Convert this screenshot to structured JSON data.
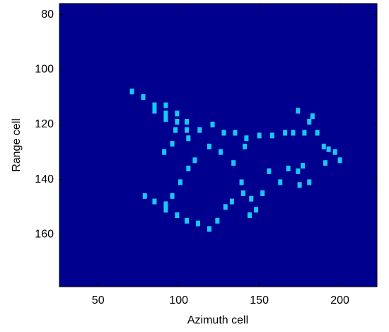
{
  "chart_data": {
    "type": "scatter",
    "x_label": "Azimuth cell",
    "y_label": "Range cell",
    "xlim": [
      26,
      223
    ],
    "ylim": [
      76,
      179
    ],
    "y_reversed": true,
    "xticks": [
      50,
      100,
      150,
      200
    ],
    "yticks": [
      80,
      100,
      120,
      140,
      160
    ],
    "background": "#00008f",
    "color": "#19c8ff",
    "x": [
      71,
      78,
      85,
      85,
      92,
      92,
      92,
      99,
      99,
      98,
      105,
      105,
      106,
      113,
      96,
      91,
      119,
      106,
      110,
      126,
      134,
      141,
      135,
      121,
      128,
      142,
      150,
      158,
      166,
      171,
      178,
      174,
      181,
      186,
      183,
      190,
      193,
      197,
      200,
      191,
      177,
      174,
      168,
      163,
      152,
      148,
      144,
      140,
      145,
      139,
      133,
      129,
      124,
      119,
      112,
      105,
      99,
      92,
      92,
      85,
      79,
      96,
      101,
      175,
      181,
      156
    ],
    "values": [
      108,
      110,
      113,
      115,
      113,
      116,
      118,
      116,
      119,
      122,
      119,
      122,
      125,
      122,
      127,
      130,
      128,
      136,
      133,
      130,
      134,
      128,
      123,
      120,
      123,
      125,
      124,
      124,
      123,
      123,
      123,
      115,
      119,
      123,
      117,
      128,
      129,
      130,
      133,
      134,
      135,
      137,
      136,
      141,
      145,
      151,
      153,
      145,
      147,
      141,
      148,
      150,
      155,
      158,
      156,
      155,
      153,
      151,
      149,
      148,
      146,
      146,
      141,
      142,
      141,
      137
    ]
  }
}
